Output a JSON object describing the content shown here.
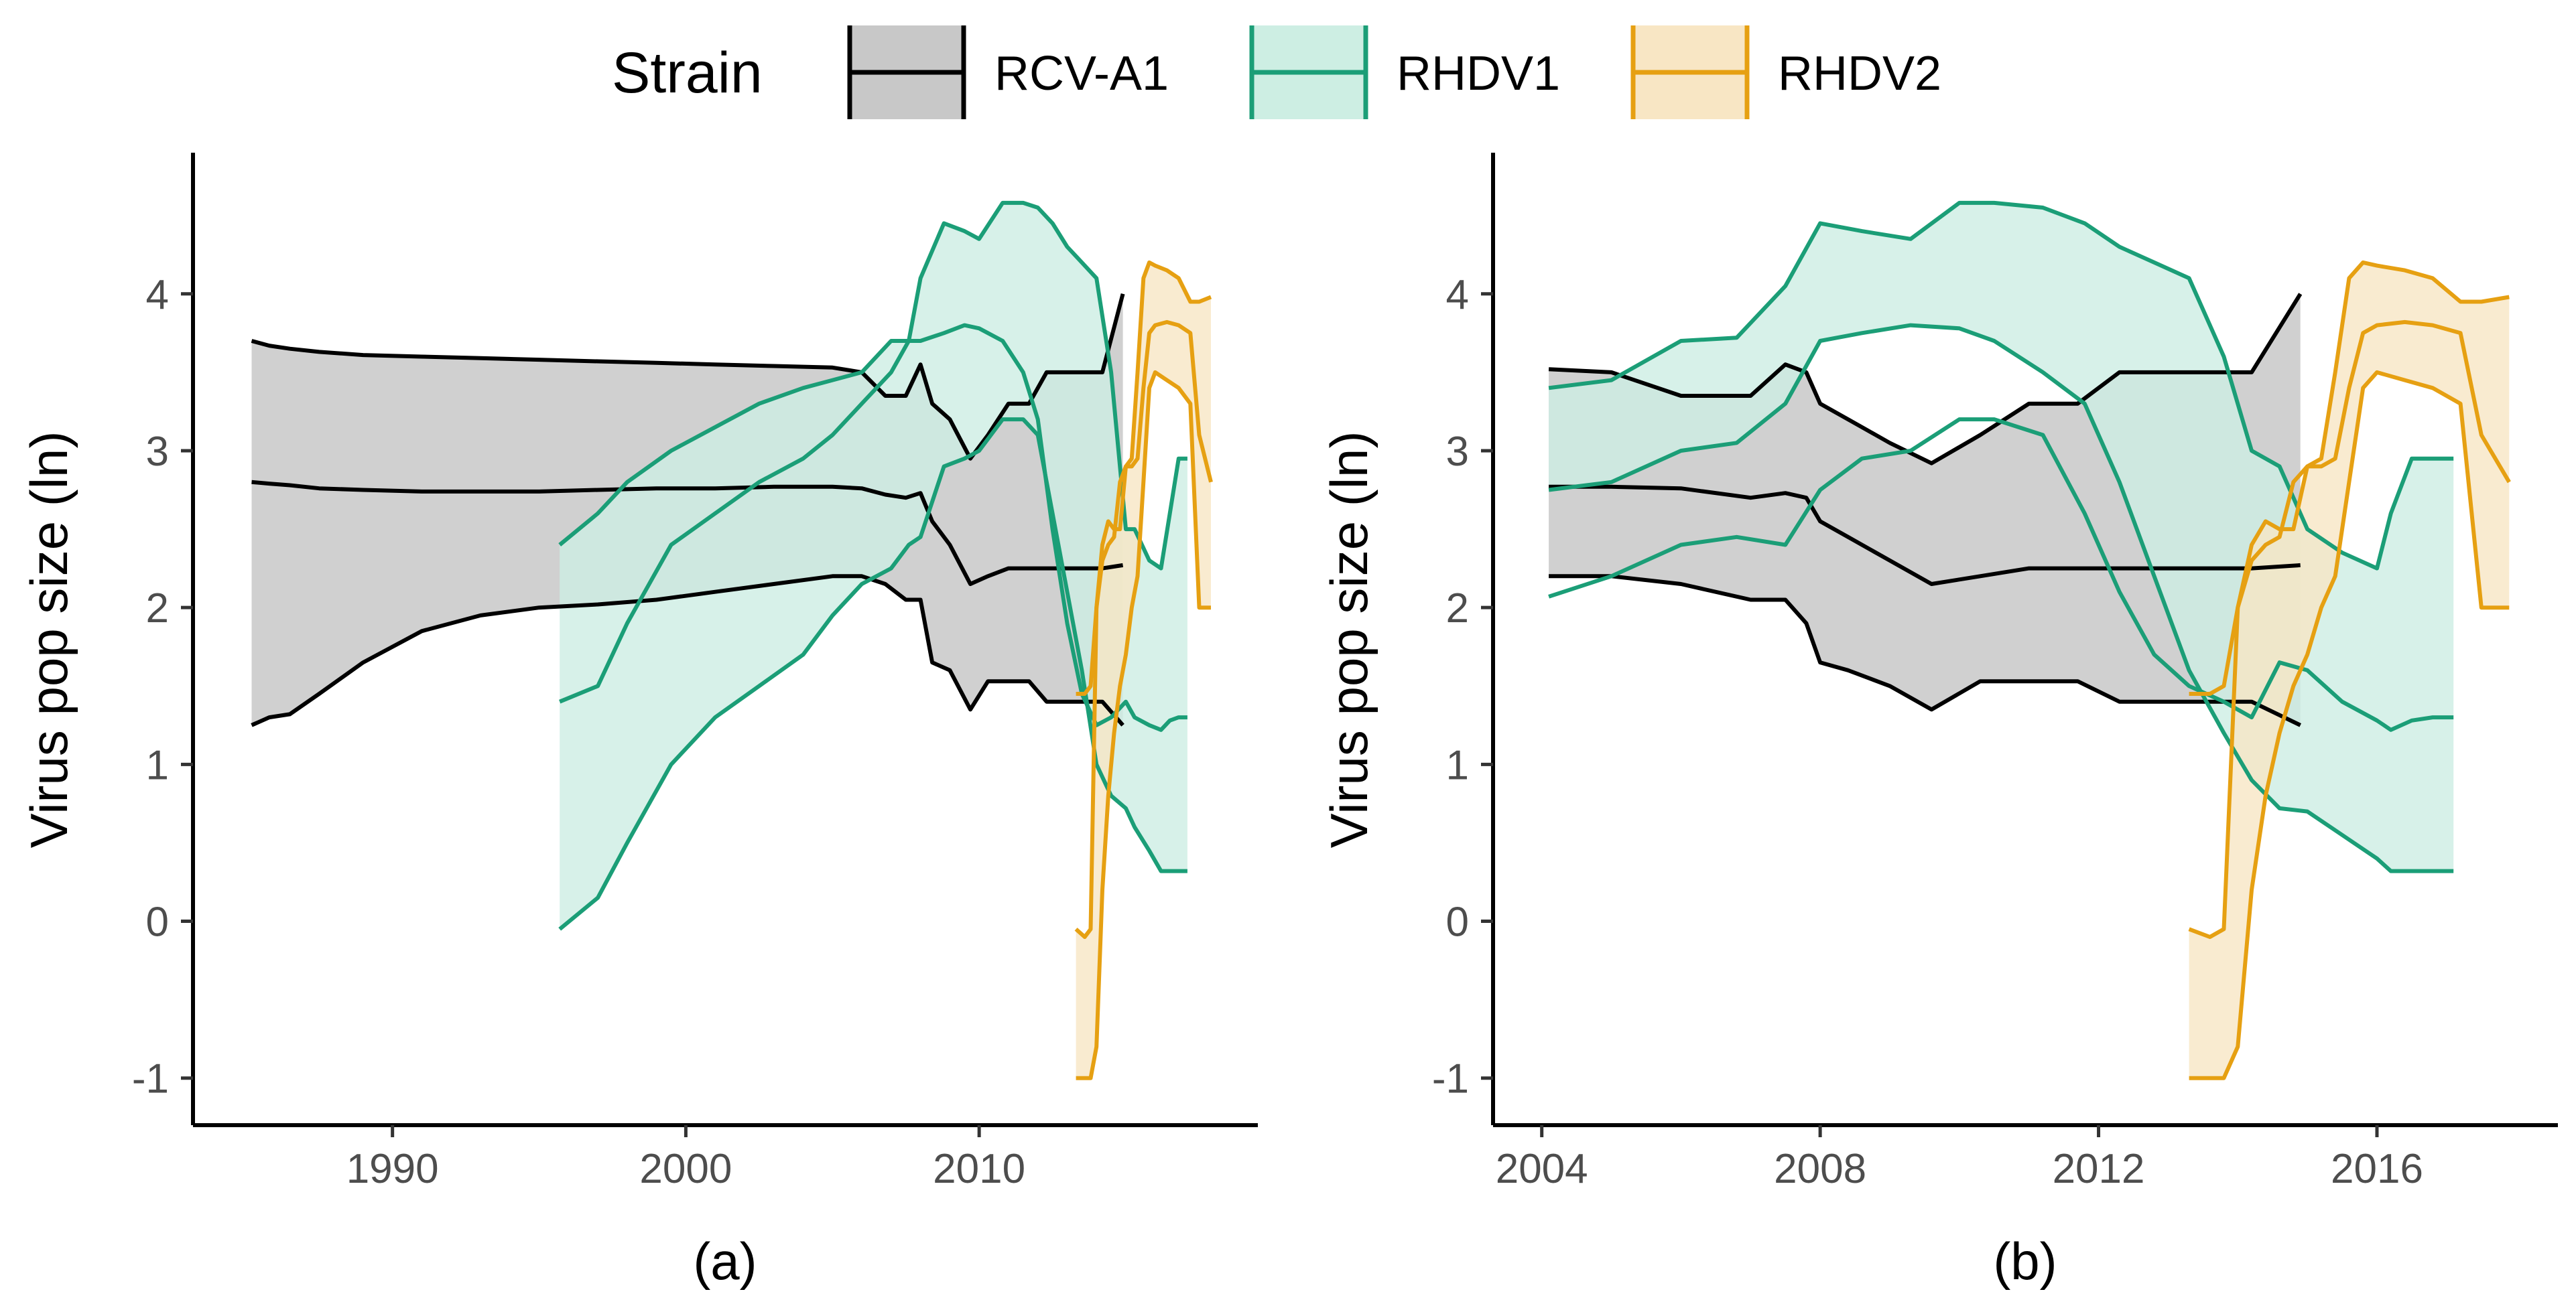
{
  "chart_data": {
    "type": "line",
    "legend": {
      "title": "Strain",
      "position": "top",
      "entries": [
        {
          "label": "RCV-A1",
          "color": "#000000",
          "fill": "#c8c8c8"
        },
        {
          "label": "RHDV1",
          "color": "#1b9e77",
          "fill": "#cdeee3"
        },
        {
          "label": "RHDV2",
          "color": "#e6a012",
          "fill": "#f8e6c4"
        }
      ]
    },
    "panels": [
      {
        "id": "a",
        "caption": "(a)",
        "ylabel": "Virus pop size (ln)",
        "xlim": [
          1983.2,
          2019.5
        ],
        "ylim": [
          -1.3,
          4.9
        ],
        "xticks": [
          1990,
          2000,
          2010
        ],
        "xtick_labels": [
          "1990",
          "2000",
          "2010"
        ],
        "yticks": [
          -1,
          0,
          1,
          2,
          3,
          4
        ],
        "ytick_labels": [
          "-1",
          "0",
          "1",
          "2",
          "3",
          "4"
        ],
        "series": [
          {
            "name": "RCV-A1",
            "x": [
              1985.2,
              1985.8,
              1986.5,
              1987.5,
              1989,
              1991,
              1993,
              1995,
              1997,
              1999,
              2001,
              2003,
              2005,
              2006,
              2006.8,
              2007.5,
              2008,
              2008.4,
              2009,
              2009.7,
              2010.3,
              2011,
              2011.7,
              2012.3,
              2013,
              2013.7,
              2014.2,
              2014.9
            ],
            "median": [
              2.8,
              2.79,
              2.78,
              2.76,
              2.75,
              2.74,
              2.74,
              2.74,
              2.75,
              2.76,
              2.76,
              2.77,
              2.77,
              2.76,
              2.72,
              2.7,
              2.73,
              2.55,
              2.4,
              2.15,
              2.2,
              2.25,
              2.25,
              2.25,
              2.25,
              2.25,
              2.25,
              2.27
            ],
            "upper": [
              3.7,
              3.67,
              3.65,
              3.63,
              3.61,
              3.6,
              3.59,
              3.58,
              3.57,
              3.56,
              3.55,
              3.54,
              3.53,
              3.5,
              3.35,
              3.35,
              3.55,
              3.3,
              3.2,
              2.95,
              3.1,
              3.3,
              3.3,
              3.5,
              3.5,
              3.5,
              3.5,
              4.0
            ],
            "lower": [
              1.25,
              1.3,
              1.32,
              1.45,
              1.65,
              1.85,
              1.95,
              2.0,
              2.02,
              2.05,
              2.1,
              2.15,
              2.2,
              2.2,
              2.15,
              2.05,
              2.05,
              1.65,
              1.6,
              1.35,
              1.53,
              1.53,
              1.53,
              1.4,
              1.4,
              1.4,
              1.4,
              1.25
            ]
          },
          {
            "name": "RHDV1",
            "x": [
              1995.7,
              1997,
              1998,
              1999.5,
              2001,
              2002.5,
              2004,
              2005,
              2006,
              2007,
              2007.6,
              2008,
              2008.8,
              2009.5,
              2010,
              2010.8,
              2011.5,
              2012,
              2012.5,
              2013,
              2013.5,
              2014,
              2014.5,
              2015,
              2015.3,
              2015.8,
              2016.2,
              2016.5,
              2016.8,
              2017.1
            ],
            "median": [
              1.4,
              1.5,
              1.9,
              2.4,
              2.6,
              2.8,
              2.95,
              3.1,
              3.3,
              3.5,
              3.7,
              3.7,
              3.75,
              3.8,
              3.78,
              3.7,
              3.5,
              3.2,
              2.5,
              1.9,
              1.45,
              1.25,
              1.3,
              1.4,
              1.3,
              1.25,
              1.22,
              1.28,
              1.3,
              1.3
            ],
            "upper": [
              2.4,
              2.6,
              2.8,
              3.0,
              3.15,
              3.3,
              3.4,
              3.45,
              3.5,
              3.7,
              3.7,
              4.1,
              4.45,
              4.4,
              4.35,
              4.58,
              4.58,
              4.55,
              4.45,
              4.3,
              4.2,
              4.1,
              3.5,
              2.5,
              2.5,
              2.3,
              2.25,
              2.6,
              2.95,
              2.95
            ],
            "lower": [
              -0.05,
              0.15,
              0.5,
              1.0,
              1.3,
              1.5,
              1.7,
              1.95,
              2.15,
              2.25,
              2.4,
              2.45,
              2.9,
              2.95,
              3.0,
              3.2,
              3.2,
              3.1,
              2.6,
              2.1,
              1.6,
              1.0,
              0.8,
              0.72,
              0.6,
              0.45,
              0.32,
              0.32,
              0.32,
              0.32
            ]
          },
          {
            "name": "RHDV2",
            "x": [
              2013.3,
              2013.6,
              2013.8,
              2014.0,
              2014.2,
              2014.4,
              2014.6,
              2014.8,
              2015.0,
              2015.2,
              2015.4,
              2015.6,
              2015.8,
              2016.0,
              2016.4,
              2016.8,
              2017.2,
              2017.5,
              2017.9
            ],
            "median": [
              1.45,
              1.45,
              1.5,
              2.0,
              2.3,
              2.4,
              2.45,
              2.8,
              2.9,
              2.9,
              2.95,
              3.4,
              3.75,
              3.8,
              3.82,
              3.8,
              3.75,
              3.1,
              2.8
            ],
            "upper": [
              -0.05,
              -0.1,
              -0.05,
              2.0,
              2.4,
              2.55,
              2.5,
              2.5,
              2.9,
              2.95,
              3.5,
              4.1,
              4.2,
              4.18,
              4.15,
              4.1,
              3.95,
              3.95,
              3.98
            ],
            "lower": [
              -1.0,
              -1.0,
              -1.0,
              -0.8,
              0.2,
              0.8,
              1.2,
              1.5,
              1.7,
              2.0,
              2.2,
              2.8,
              3.4,
              3.5,
              3.45,
              3.4,
              3.3,
              2.0,
              2.0
            ]
          }
        ]
      },
      {
        "id": "b",
        "caption": "(b)",
        "ylabel": "Virus pop size (ln)",
        "xlim": [
          2003.3,
          2018.6
        ],
        "ylim": [
          -1.3,
          4.9
        ],
        "xticks": [
          2004,
          2008,
          2012,
          2016
        ],
        "xtick_labels": [
          "2004",
          "2008",
          "2012",
          "2016"
        ],
        "yticks": [
          -1,
          0,
          1,
          2,
          3,
          4
        ],
        "ytick_labels": [
          "-1",
          "0",
          "1",
          "2",
          "3",
          "4"
        ],
        "series": [
          {
            "name": "RCV-A1",
            "x": [
              2004.1,
              2005,
              2006,
              2007,
              2007.5,
              2007.8,
              2008,
              2008.4,
              2009,
              2009.6,
              2010.3,
              2011,
              2011.7,
              2012.3,
              2013,
              2013.7,
              2014.2,
              2014.9
            ],
            "median": [
              2.77,
              2.77,
              2.76,
              2.7,
              2.73,
              2.7,
              2.55,
              2.45,
              2.3,
              2.15,
              2.2,
              2.25,
              2.25,
              2.25,
              2.25,
              2.25,
              2.25,
              2.27
            ],
            "upper": [
              3.52,
              3.5,
              3.35,
              3.35,
              3.55,
              3.5,
              3.3,
              3.2,
              3.05,
              2.92,
              3.1,
              3.3,
              3.3,
              3.5,
              3.5,
              3.5,
              3.5,
              4.0
            ],
            "lower": [
              2.2,
              2.2,
              2.15,
              2.05,
              2.05,
              1.9,
              1.65,
              1.6,
              1.5,
              1.35,
              1.53,
              1.53,
              1.53,
              1.4,
              1.4,
              1.4,
              1.4,
              1.25
            ]
          },
          {
            "name": "RHDV1",
            "x": [
              2004.1,
              2005,
              2006,
              2006.8,
              2007.5,
              2008,
              2008.6,
              2009.3,
              2010,
              2010.5,
              2011.2,
              2011.8,
              2012.3,
              2012.8,
              2013.3,
              2013.8,
              2014.2,
              2014.6,
              2015,
              2015.5,
              2016,
              2016.2,
              2016.5,
              2016.8,
              2017.1
            ],
            "median": [
              2.07,
              2.2,
              2.4,
              2.45,
              2.4,
              2.75,
              2.95,
              3.0,
              3.2,
              3.2,
              3.1,
              2.6,
              2.1,
              1.7,
              1.5,
              1.4,
              1.3,
              1.65,
              1.6,
              1.4,
              1.28,
              1.22,
              1.28,
              1.3,
              1.3
            ],
            "upper": [
              3.4,
              3.45,
              3.7,
              3.72,
              4.05,
              4.45,
              4.4,
              4.35,
              4.58,
              4.58,
              4.55,
              4.45,
              4.3,
              4.2,
              4.1,
              3.6,
              3.0,
              2.9,
              2.5,
              2.35,
              2.25,
              2.6,
              2.95,
              2.95,
              2.95
            ],
            "lower": [
              2.75,
              2.8,
              3.0,
              3.05,
              3.3,
              3.7,
              3.75,
              3.8,
              3.78,
              3.7,
              3.5,
              3.3,
              2.8,
              2.2,
              1.6,
              1.2,
              0.9,
              0.72,
              0.7,
              0.55,
              0.4,
              0.32,
              0.32,
              0.32,
              0.32
            ]
          },
          {
            "name": "RHDV2",
            "x": [
              2013.3,
              2013.6,
              2013.8,
              2014.0,
              2014.2,
              2014.4,
              2014.6,
              2014.8,
              2015.0,
              2015.2,
              2015.4,
              2015.6,
              2015.8,
              2016.0,
              2016.4,
              2016.8,
              2017.2,
              2017.5,
              2017.9
            ],
            "median": [
              1.45,
              1.45,
              1.5,
              2.0,
              2.3,
              2.4,
              2.45,
              2.8,
              2.9,
              2.9,
              2.95,
              3.4,
              3.75,
              3.8,
              3.82,
              3.8,
              3.75,
              3.1,
              2.8
            ],
            "upper": [
              -0.05,
              -0.1,
              -0.05,
              2.0,
              2.4,
              2.55,
              2.5,
              2.5,
              2.9,
              2.95,
              3.5,
              4.1,
              4.2,
              4.18,
              4.15,
              4.1,
              3.95,
              3.95,
              3.98
            ],
            "lower": [
              -1.0,
              -1.0,
              -1.0,
              -0.8,
              0.2,
              0.8,
              1.2,
              1.5,
              1.7,
              2.0,
              2.2,
              2.8,
              3.4,
              3.5,
              3.45,
              3.4,
              3.3,
              2.0,
              2.0
            ]
          }
        ]
      }
    ]
  }
}
